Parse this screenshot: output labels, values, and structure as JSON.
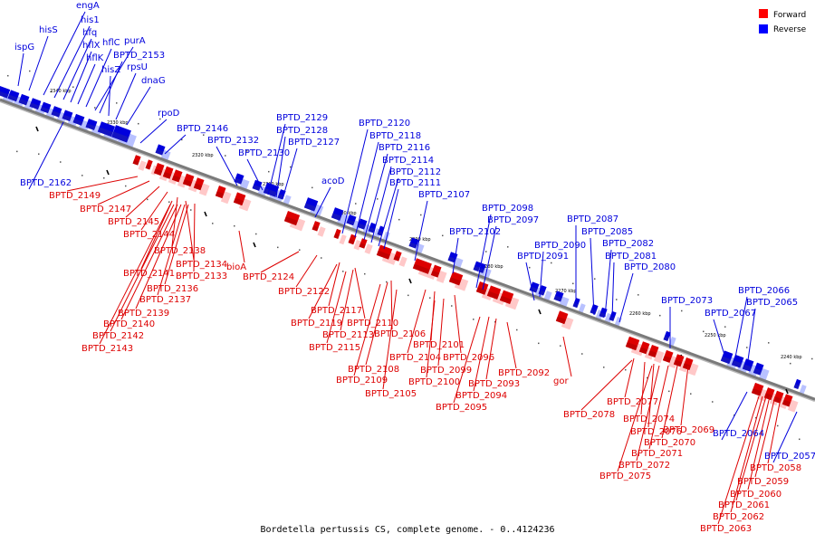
{
  "legend": [
    {
      "label": "Forward",
      "color": "#ff0000"
    },
    {
      "label": "Reverse",
      "color": "#0000ff"
    }
  ],
  "caption": "Bordetella pertussis CS, complete genome. - 0..4124236",
  "colors": {
    "forward": "#dd0000",
    "reverse": "#0000dd",
    "axis": "#888888"
  },
  "ticks": [
    "2340 kbp",
    "2330 kbp",
    "2320 kbp",
    "2310 kbp",
    "2300 kbp",
    "2290 kbp",
    "2280 kbp",
    "2270 kbp",
    "2260 kbp",
    "2250 kbp",
    "2240 kbp"
  ],
  "reverse_labels": [
    "ispG",
    "hisS",
    "engA",
    "his1",
    "hfq",
    "hflX",
    "hflK",
    "hflC",
    "purA",
    "BPTD_2153",
    "hisZ",
    "rpsU",
    "dnaG",
    "rpoD",
    "BPTD_2146",
    "BPTD_2162",
    "BPTD_2132",
    "BPTD_2130",
    "BPTD_2129",
    "BPTD_2128",
    "BPTD_2127",
    "acoD",
    "BPTD_2120",
    "BPTD_2118",
    "BPTD_2116",
    "BPTD_2114",
    "BPTD_2112",
    "BPTD_2111",
    "BPTD_2107",
    "BPTD_2102",
    "BPTD_2098",
    "BPTD_2097",
    "BPTD_2090",
    "BPTD_2091",
    "BPTD_2087",
    "BPTD_2085",
    "BPTD_2082",
    "BPTD_2081",
    "BPTD_2080",
    "BPTD_2073",
    "BPTD_2067",
    "BPTD_2066",
    "BPTD_2065",
    "BPTD_2064",
    "BPTD_2057"
  ],
  "forward_labels": [
    "BPTD_2149",
    "BPTD_2147",
    "BPTD_2145",
    "BPTD_2144",
    "BPTD_2138",
    "BPTD_2134",
    "BPTD_2141",
    "BPTD_2133",
    "BPTD_2136",
    "BPTD_2137",
    "BPTD_2139",
    "BPTD_2140",
    "BPTD_2142",
    "BPTD_2143",
    "bioA",
    "BPTD_2124",
    "BPTD_2122",
    "BPTD_2117",
    "BPTD_2119",
    "BPTD_2110",
    "BPTD_2113",
    "BPTD_2106",
    "BPTD_2115",
    "BPTD_2101",
    "BPTD_2104",
    "BPTD_2096",
    "BPTD_2108",
    "BPTD_2099",
    "BPTD_2109",
    "BPTD_2100",
    "BPTD_2092",
    "BPTD_2093",
    "BPTD_2105",
    "BPTD_2094",
    "BPTD_2095",
    "gor",
    "BPTD_2077",
    "BPTD_2078",
    "BPTD_2074",
    "BPTD_2076",
    "BPTD_2069",
    "BPTD_2070",
    "BPTD_2071",
    "BPTD_2072",
    "BPTD_2075",
    "BPTD_2058",
    "BPTD_2059",
    "BPTD_2060",
    "BPTD_2061",
    "BPTD_2062",
    "BPTD_2063"
  ]
}
